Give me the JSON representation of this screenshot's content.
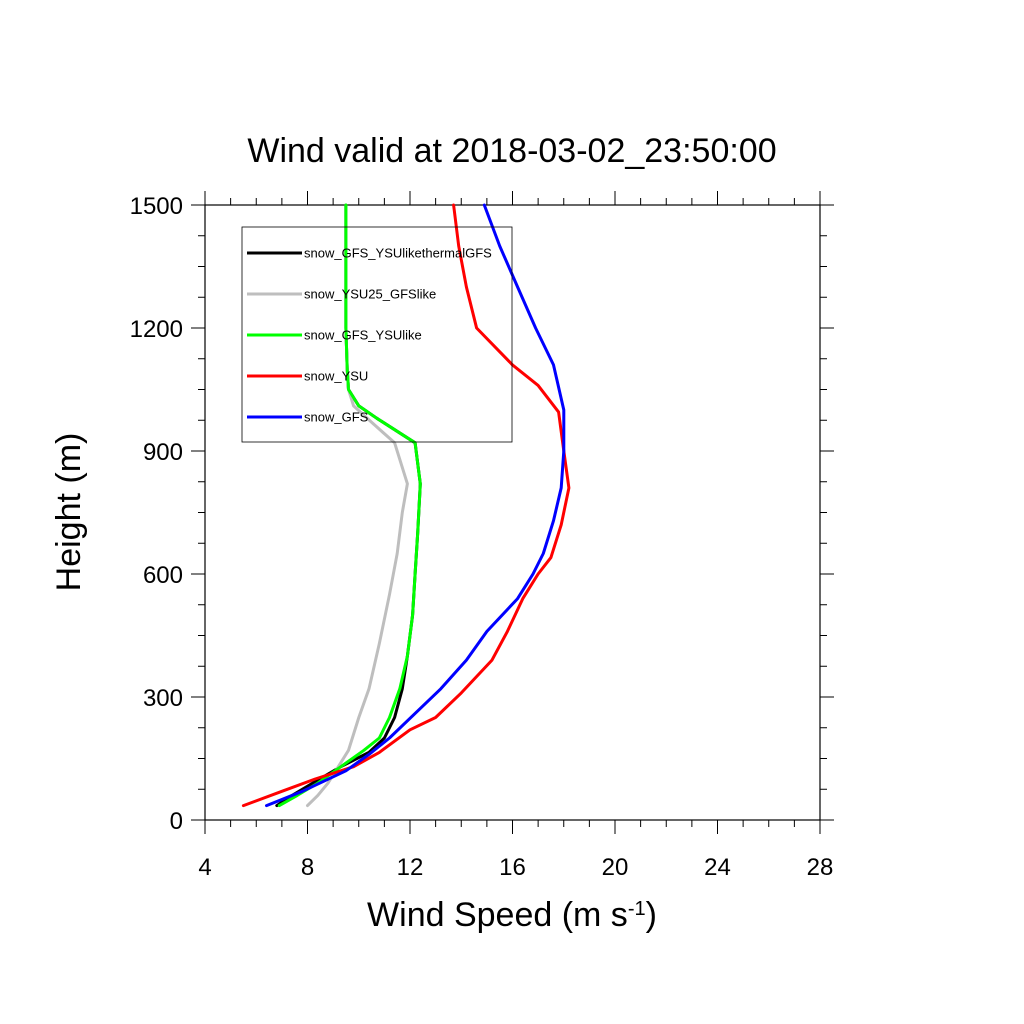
{
  "chart_data": {
    "type": "line",
    "title": "Wind valid at 2018-03-02_23:50:00",
    "xlabel": "Wind Speed (m s",
    "xlabel_sup": "-1",
    "xlabel_end": ")",
    "ylabel": "Height (m)",
    "xlim": [
      4,
      28
    ],
    "ylim": [
      0,
      1500
    ],
    "xticks": [
      4,
      8,
      12,
      16,
      20,
      24,
      28
    ],
    "yticks": [
      0,
      300,
      600,
      900,
      1200,
      1500
    ],
    "grid": false,
    "legend_position": "top-left",
    "series": [
      {
        "name": "snow_GFS_YSUlikethermalGFS",
        "color": "#000000",
        "points": [
          [
            6.8,
            35
          ],
          [
            7.4,
            60
          ],
          [
            8.2,
            90
          ],
          [
            9.3,
            130
          ],
          [
            10.4,
            165
          ],
          [
            11.0,
            200
          ],
          [
            11.4,
            250
          ],
          [
            11.7,
            320
          ],
          [
            11.9,
            400
          ],
          [
            12.1,
            500
          ],
          [
            12.2,
            600
          ],
          [
            12.3,
            700
          ],
          [
            12.4,
            820
          ],
          [
            12.2,
            920
          ],
          [
            10.7,
            980
          ],
          [
            10.0,
            1010
          ],
          [
            9.6,
            1050
          ],
          [
            9.55,
            1100
          ],
          [
            9.5,
            1200
          ],
          [
            9.5,
            1300
          ],
          [
            9.5,
            1400
          ],
          [
            9.5,
            1500
          ]
        ]
      },
      {
        "name": "snow_YSU25_GFSlike",
        "color": "#bebebe",
        "points": [
          [
            8.0,
            35
          ],
          [
            8.4,
            60
          ],
          [
            8.8,
            90
          ],
          [
            9.2,
            130
          ],
          [
            9.6,
            170
          ],
          [
            10.0,
            250
          ],
          [
            10.4,
            320
          ],
          [
            10.8,
            430
          ],
          [
            11.2,
            550
          ],
          [
            11.5,
            650
          ],
          [
            11.7,
            750
          ],
          [
            11.9,
            820
          ],
          [
            11.4,
            920
          ],
          [
            10.5,
            970
          ],
          [
            9.8,
            1010
          ],
          [
            9.6,
            1050
          ],
          [
            9.55,
            1100
          ],
          [
            9.5,
            1200
          ],
          [
            9.5,
            1300
          ],
          [
            9.5,
            1400
          ],
          [
            9.5,
            1500
          ]
        ]
      },
      {
        "name": "snow_GFS_YSUlike",
        "color": "#00ff00",
        "points": [
          [
            6.9,
            35
          ],
          [
            7.6,
            60
          ],
          [
            8.4,
            90
          ],
          [
            9.3,
            130
          ],
          [
            10.2,
            170
          ],
          [
            10.8,
            200
          ],
          [
            11.2,
            250
          ],
          [
            11.6,
            320
          ],
          [
            11.9,
            400
          ],
          [
            12.1,
            500
          ],
          [
            12.2,
            600
          ],
          [
            12.3,
            700
          ],
          [
            12.4,
            820
          ],
          [
            12.2,
            920
          ],
          [
            10.7,
            980
          ],
          [
            10.0,
            1010
          ],
          [
            9.6,
            1050
          ],
          [
            9.55,
            1100
          ],
          [
            9.5,
            1200
          ],
          [
            9.5,
            1300
          ],
          [
            9.5,
            1400
          ],
          [
            9.5,
            1500
          ]
        ]
      },
      {
        "name": "snow_YSU",
        "color": "#ff0000",
        "points": [
          [
            5.5,
            35
          ],
          [
            7.0,
            70
          ],
          [
            8.3,
            100
          ],
          [
            9.8,
            130
          ],
          [
            10.8,
            165
          ],
          [
            12.0,
            220
          ],
          [
            13.0,
            250
          ],
          [
            14.0,
            310
          ],
          [
            15.2,
            390
          ],
          [
            15.8,
            460
          ],
          [
            16.4,
            540
          ],
          [
            17.0,
            600
          ],
          [
            17.5,
            640
          ],
          [
            17.9,
            720
          ],
          [
            18.2,
            810
          ],
          [
            18.0,
            900
          ],
          [
            17.8,
            995
          ],
          [
            17.0,
            1060
          ],
          [
            16.0,
            1110
          ],
          [
            14.6,
            1200
          ],
          [
            14.2,
            1300
          ],
          [
            13.9,
            1400
          ],
          [
            13.7,
            1500
          ]
        ]
      },
      {
        "name": "snow_GFS",
        "color": "#0000ff",
        "points": [
          [
            6.4,
            35
          ],
          [
            7.8,
            70
          ],
          [
            9.5,
            120
          ],
          [
            10.4,
            160
          ],
          [
            11.2,
            200
          ],
          [
            12.2,
            260
          ],
          [
            13.2,
            320
          ],
          [
            14.2,
            390
          ],
          [
            15.0,
            460
          ],
          [
            16.2,
            540
          ],
          [
            16.8,
            600
          ],
          [
            17.2,
            650
          ],
          [
            17.6,
            730
          ],
          [
            17.9,
            810
          ],
          [
            18.0,
            900
          ],
          [
            18.0,
            1000
          ],
          [
            17.6,
            1110
          ],
          [
            16.9,
            1200
          ],
          [
            16.2,
            1300
          ],
          [
            15.5,
            1400
          ],
          [
            14.9,
            1500
          ]
        ]
      }
    ]
  }
}
